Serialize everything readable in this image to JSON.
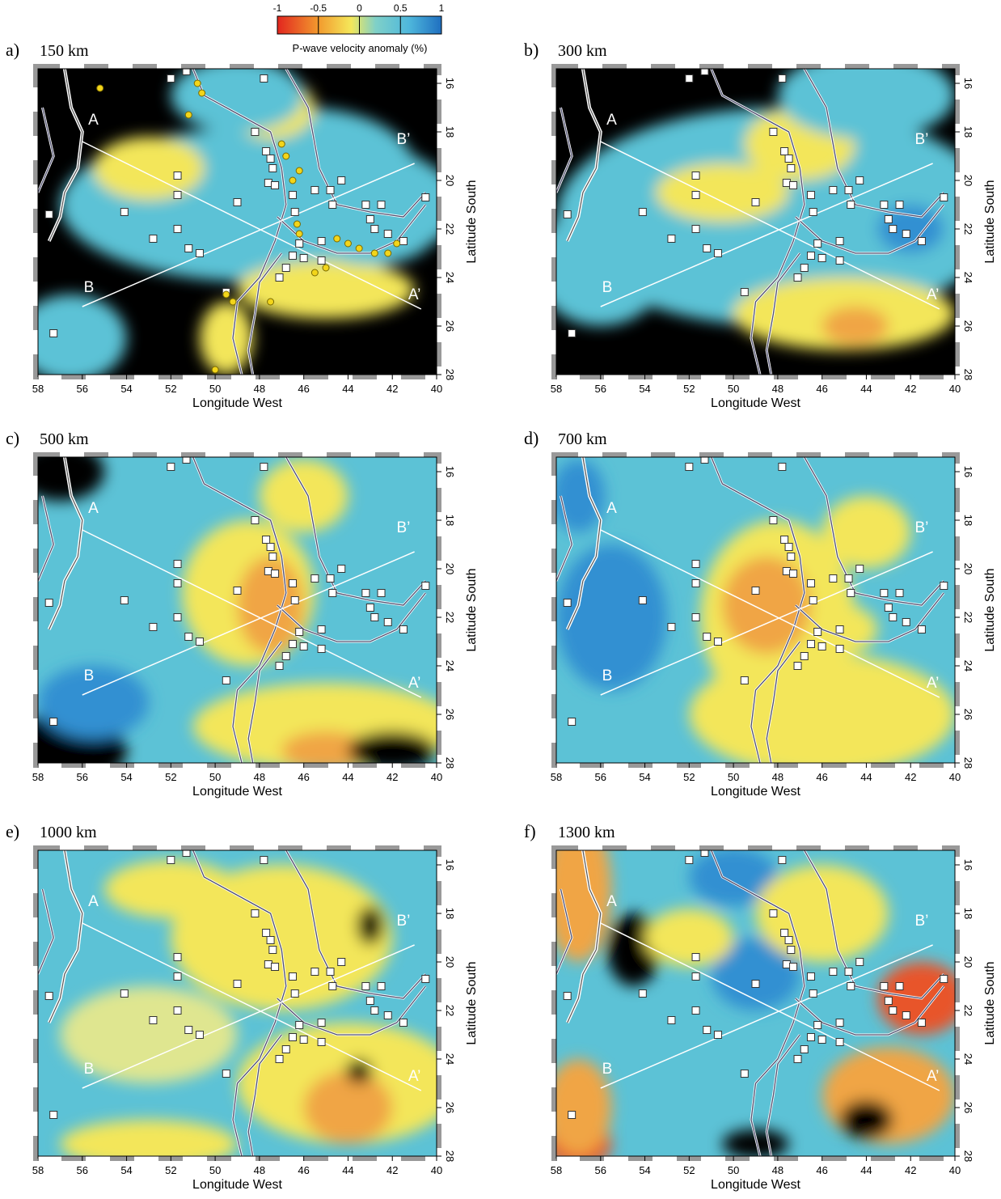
{
  "colorbar": {
    "ticks": [
      -1,
      -0.5,
      0,
      0.5,
      1
    ],
    "title": "P-wave velocity anomaly (%)"
  },
  "map_axes": {
    "xticks": [
      58,
      56,
      54,
      52,
      50,
      48,
      46,
      44,
      42,
      40
    ],
    "yticks": [
      16,
      18,
      20,
      22,
      24,
      26,
      28
    ],
    "xlabel": "Longitude West",
    "ylabel": "Latitude South"
  },
  "profiles": {
    "a_start": "A",
    "a_end": "A’",
    "b_start": "B",
    "b_end": "B’"
  },
  "panels": [
    {
      "label": "a)",
      "depth": "150 km"
    },
    {
      "label": "b)",
      "depth": "300 km"
    },
    {
      "label": "c)",
      "depth": "500 km"
    },
    {
      "label": "d)",
      "depth": "700 km"
    },
    {
      "label": "e)",
      "depth": "1000 km"
    },
    {
      "label": "f)",
      "depth": "1300 km"
    }
  ]
}
